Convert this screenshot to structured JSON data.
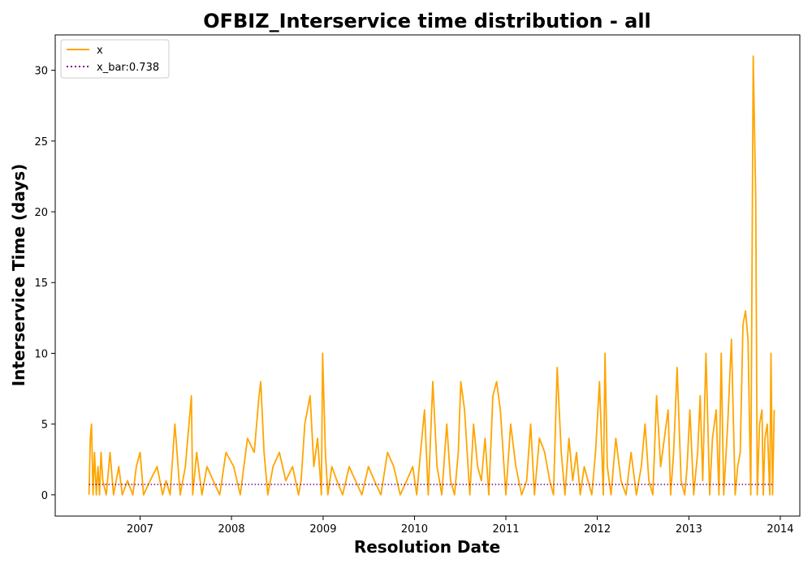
{
  "chart_data": {
    "type": "line",
    "title": "OFBIZ_Interservice time distribution - all",
    "xlabel": "Resolution Date",
    "ylabel": "Interservice Time (days)",
    "xlim": [
      "2006-01-27",
      "2014-03-20"
    ],
    "ylim": [
      -1.5,
      32.5
    ],
    "x_ticks": [
      {
        "label": "2007",
        "date": "2007-01-01"
      },
      {
        "label": "2008",
        "date": "2008-01-01"
      },
      {
        "label": "2009",
        "date": "2009-01-01"
      },
      {
        "label": "2010",
        "date": "2010-01-01"
      },
      {
        "label": "2011",
        "date": "2011-01-01"
      },
      {
        "label": "2012",
        "date": "2012-01-01"
      },
      {
        "label": "2013",
        "date": "2013-01-01"
      },
      {
        "label": "2014",
        "date": "2014-01-01"
      }
    ],
    "y_ticks": [
      0,
      5,
      10,
      15,
      20,
      25,
      30
    ],
    "grid": false,
    "legend_position": "upper-left",
    "series": [
      {
        "name": "x",
        "color": "#ffa500",
        "style": "solid",
        "x": [
          "2006-06-11",
          "2006-06-16",
          "2006-06-21",
          "2006-06-27",
          "2006-07-03",
          "2006-07-10",
          "2006-07-17",
          "2006-07-23",
          "2006-07-29",
          "2006-08-05",
          "2006-08-19",
          "2006-09-03",
          "2006-09-17",
          "2006-10-08",
          "2006-10-22",
          "2006-11-12",
          "2006-12-03",
          "2006-12-17",
          "2007-01-01",
          "2007-01-15",
          "2007-02-10",
          "2007-03-10",
          "2007-04-01",
          "2007-04-15",
          "2007-05-01",
          "2007-05-20",
          "2007-06-10",
          "2007-07-01",
          "2007-07-25",
          "2007-07-30",
          "2007-08-15",
          "2007-09-05",
          "2007-09-25",
          "2007-10-20",
          "2007-11-15",
          "2007-12-10",
          "2008-01-10",
          "2008-02-05",
          "2008-03-05",
          "2008-04-01",
          "2008-04-20",
          "2008-04-27",
          "2008-05-10",
          "2008-05-25",
          "2008-06-15",
          "2008-07-10",
          "2008-08-05",
          "2008-09-01",
          "2008-09-25",
          "2008-10-05",
          "2008-10-20",
          "2008-11-10",
          "2008-11-25",
          "2008-12-10",
          "2008-12-25",
          "2008-12-30",
          "2009-01-10",
          "2009-01-20",
          "2009-02-05",
          "2009-02-25",
          "2009-03-20",
          "2009-04-15",
          "2009-05-10",
          "2009-06-05",
          "2009-07-01",
          "2009-07-25",
          "2009-08-20",
          "2009-09-15",
          "2009-10-10",
          "2009-11-05",
          "2009-12-01",
          "2009-12-25",
          "2010-01-10",
          "2010-01-25",
          "2010-02-10",
          "2010-02-25",
          "2010-03-15",
          "2010-04-01",
          "2010-04-20",
          "2010-05-10",
          "2010-05-25",
          "2010-06-10",
          "2010-06-25",
          "2010-07-05",
          "2010-07-20",
          "2010-08-10",
          "2010-08-25",
          "2010-09-10",
          "2010-09-25",
          "2010-10-10",
          "2010-10-25",
          "2010-11-10",
          "2010-11-25",
          "2010-12-10",
          "2011-01-01",
          "2011-01-20",
          "2011-02-10",
          "2011-03-05",
          "2011-03-25",
          "2011-04-10",
          "2011-04-25",
          "2011-05-15",
          "2011-06-05",
          "2011-06-25",
          "2011-07-10",
          "2011-07-25",
          "2011-08-10",
          "2011-08-25",
          "2011-09-10",
          "2011-09-25",
          "2011-10-10",
          "2011-10-25",
          "2011-11-10",
          "2011-11-25",
          "2011-12-10",
          "2011-12-25",
          "2012-01-10",
          "2012-01-25",
          "2012-02-01",
          "2012-02-10",
          "2012-02-25",
          "2012-03-15",
          "2012-04-05",
          "2012-04-25",
          "2012-05-15",
          "2012-06-05",
          "2012-06-25",
          "2012-07-10",
          "2012-07-25",
          "2012-08-10",
          "2012-08-25",
          "2012-09-10",
          "2012-09-25",
          "2012-10-10",
          "2012-10-20",
          "2012-11-01",
          "2012-11-15",
          "2012-12-01",
          "2012-12-15",
          "2012-12-25",
          "2013-01-05",
          "2013-01-20",
          "2013-02-05",
          "2013-02-15",
          "2013-02-25",
          "2013-03-10",
          "2013-03-25",
          "2013-04-05",
          "2013-04-20",
          "2013-05-01",
          "2013-05-10",
          "2013-05-20",
          "2013-06-05",
          "2013-06-20",
          "2013-07-05",
          "2013-07-15",
          "2013-07-25",
          "2013-08-05",
          "2013-08-15",
          "2013-08-25",
          "2013-09-05",
          "2013-09-15",
          "2013-09-25",
          "2013-10-01",
          "2013-10-10",
          "2013-10-20",
          "2013-10-25",
          "2013-11-01",
          "2013-11-10",
          "2013-11-20",
          "2013-11-25",
          "2013-12-01",
          "2013-12-08"
        ],
        "y": [
          0,
          4,
          5,
          0,
          3,
          0,
          2,
          0,
          3,
          1,
          0,
          3,
          0,
          2,
          0,
          1,
          0,
          2,
          3,
          0,
          1,
          2,
          0,
          1,
          0,
          5,
          0,
          2,
          7,
          0,
          3,
          0,
          2,
          1,
          0,
          3,
          2,
          0,
          4,
          3,
          7,
          8,
          3,
          0,
          2,
          3,
          1,
          2,
          0,
          1,
          5,
          7,
          2,
          4,
          0,
          10,
          3,
          0,
          2,
          1,
          0,
          2,
          1,
          0,
          2,
          1,
          0,
          3,
          2,
          0,
          1,
          2,
          0,
          3,
          6,
          0,
          8,
          2,
          0,
          5,
          1,
          0,
          3,
          8,
          6,
          0,
          5,
          2,
          1,
          4,
          0,
          7,
          8,
          6,
          0,
          5,
          2,
          0,
          1,
          5,
          0,
          4,
          3,
          1,
          0,
          9,
          3,
          0,
          4,
          1,
          3,
          0,
          2,
          1,
          0,
          3,
          8,
          0,
          10,
          2,
          0,
          4,
          1,
          0,
          3,
          0,
          2,
          5,
          1,
          0,
          7,
          2,
          4,
          6,
          0,
          3,
          9,
          1,
          0,
          2,
          6,
          0,
          3,
          7,
          1,
          10,
          0,
          4,
          6,
          0,
          10,
          0,
          5,
          11,
          0,
          2,
          3,
          12,
          13,
          11,
          0,
          31,
          21,
          0,
          5,
          6,
          0,
          4,
          5,
          0,
          10,
          0,
          6
        ]
      },
      {
        "name": "x_bar:0.738",
        "color": "#800080",
        "style": "dotted",
        "x": [
          "2006-06-11",
          "2013-12-08"
        ],
        "y": [
          0.738,
          0.738
        ]
      }
    ]
  }
}
